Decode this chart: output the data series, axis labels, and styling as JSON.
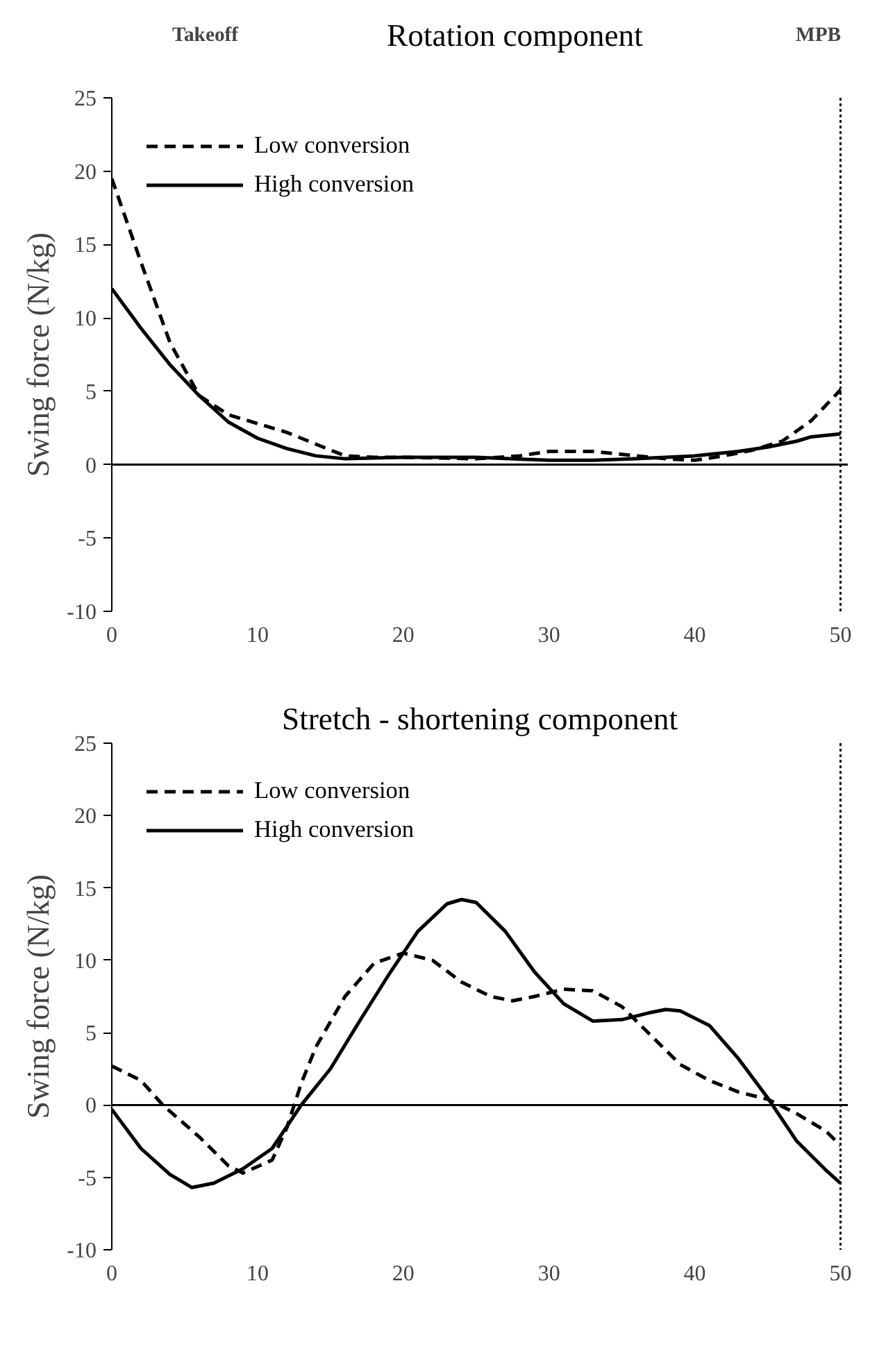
{
  "chart_data": [
    {
      "type": "line",
      "title": "Rotation component",
      "ylabel": "Swing force (N/kg)",
      "xlim": [
        0,
        50.5
      ],
      "xticks": [
        0,
        10,
        20,
        30,
        40,
        50
      ],
      "ylim": [
        -10,
        25
      ],
      "yticks": [
        -10,
        -5,
        0,
        5,
        10,
        15,
        20,
        25
      ],
      "legend": "top left",
      "grid": false,
      "annotations": [
        "Takeoff"
      ],
      "ref_lines": [
        {
          "axis": "y",
          "value": 0,
          "color": "#000000",
          "line_style": "solid"
        },
        {
          "axis": "x",
          "value": 50,
          "label": "MPB",
          "color": "#000000",
          "line_style": "dotted"
        }
      ],
      "series": [
        {
          "name": "Low conversion",
          "color": "#000000",
          "line_style": "dashed",
          "x": [
            0,
            2,
            4,
            6,
            8,
            10,
            12,
            14,
            16,
            18,
            20,
            25,
            28,
            30,
            33,
            35,
            38,
            40,
            42,
            44,
            46,
            48,
            50
          ],
          "values": [
            19.5,
            13.8,
            8.3,
            4.7,
            3.4,
            2.8,
            2.2,
            1.4,
            0.6,
            0.5,
            0.5,
            0.4,
            0.6,
            0.9,
            0.9,
            0.7,
            0.4,
            0.3,
            0.6,
            1.0,
            1.6,
            3.0,
            5.1
          ]
        },
        {
          "name": "High conversion",
          "color": "#000000",
          "line_style": "solid",
          "x": [
            0,
            2,
            4,
            6,
            8,
            10,
            12,
            14,
            16,
            20,
            25,
            30,
            33,
            36,
            40,
            43,
            45,
            47,
            48,
            50
          ],
          "values": [
            12,
            9.3,
            6.8,
            4.7,
            2.9,
            1.8,
            1.1,
            0.6,
            0.4,
            0.5,
            0.5,
            0.3,
            0.3,
            0.4,
            0.6,
            0.9,
            1.2,
            1.6,
            1.9,
            2.1
          ]
        }
      ]
    },
    {
      "type": "line",
      "title": "Stretch - shortening component",
      "ylabel": "Swing force (N/kg)",
      "xlim": [
        0,
        50.5
      ],
      "xticks": [
        0,
        10,
        20,
        30,
        40,
        50
      ],
      "ylim": [
        -10,
        25
      ],
      "yticks": [
        -10,
        -5,
        0,
        5,
        10,
        15,
        20,
        25
      ],
      "legend": "top left",
      "grid": false,
      "ref_lines": [
        {
          "axis": "y",
          "value": 0,
          "color": "#000000",
          "line_style": "solid"
        },
        {
          "axis": "x",
          "value": 50,
          "color": "#000000",
          "line_style": "dotted"
        }
      ],
      "series": [
        {
          "name": "Low conversion",
          "color": "#000000",
          "line_style": "dashed",
          "x": [
            0,
            2,
            3.5,
            6,
            8,
            9,
            11,
            12,
            13,
            14,
            16,
            18,
            20,
            22,
            24,
            26,
            27.5,
            29,
            31,
            33,
            35,
            37,
            39,
            41,
            43,
            45,
            47,
            49,
            50
          ],
          "values": [
            2.7,
            1.7,
            0,
            -2.2,
            -4.2,
            -4.7,
            -3.8,
            -1.6,
            1.5,
            4,
            7.5,
            9.8,
            10.5,
            10,
            8.5,
            7.5,
            7.2,
            7.5,
            8,
            7.9,
            6.8,
            4.8,
            2.8,
            1.7,
            0.9,
            0.4,
            -0.6,
            -1.8,
            -2.8
          ]
        },
        {
          "name": "High conversion",
          "color": "#000000",
          "line_style": "solid",
          "x": [
            0,
            2,
            4,
            5.5,
            7,
            9,
            11,
            13,
            15,
            17,
            19,
            21,
            23,
            24,
            25,
            27,
            29,
            31,
            33,
            35,
            37,
            38,
            39,
            41,
            43,
            45,
            47,
            49,
            50
          ],
          "values": [
            -0.3,
            -3,
            -4.8,
            -5.7,
            -5.4,
            -4.4,
            -3,
            0,
            2.5,
            5.8,
            9,
            12,
            13.9,
            14.2,
            14,
            12,
            9.2,
            7,
            5.8,
            5.9,
            6.4,
            6.6,
            6.5,
            5.5,
            3.2,
            0.5,
            -2.5,
            -4.5,
            -5.4
          ]
        }
      ]
    }
  ]
}
